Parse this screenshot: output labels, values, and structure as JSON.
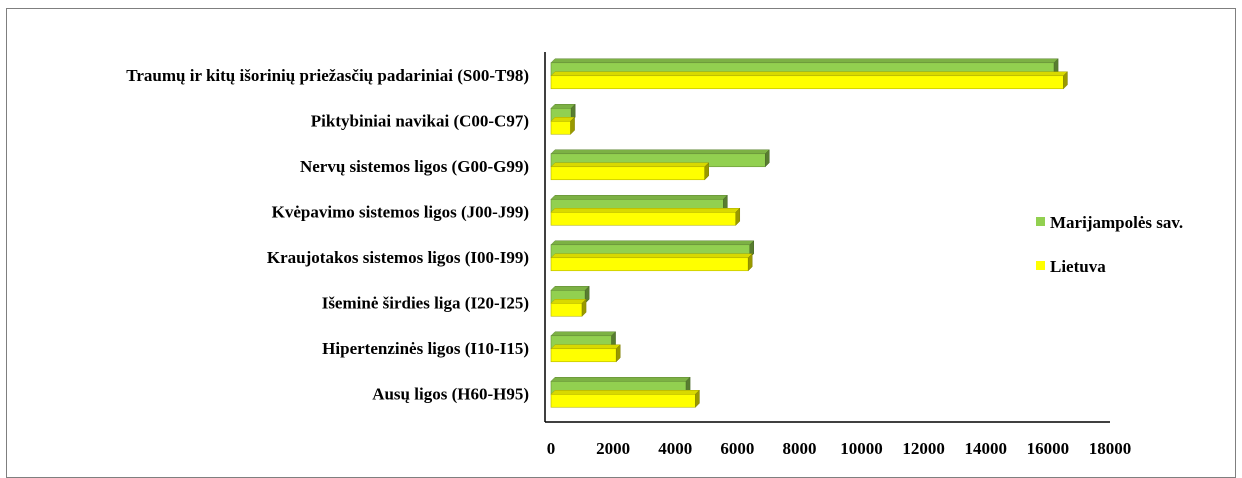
{
  "chart_data": {
    "type": "bar",
    "orientation": "horizontal",
    "style": "3d",
    "categories": [
      "Traumų ir kitų išorinių priežasčių padariniai (S00-T98)",
      "Piktybiniai navikai (C00-C97)",
      "Nervų sistemos ligos (G00-G99)",
      "Kvėpavimo sistemos ligos (J00-J99)",
      "Kraujotakos sistemos ligos (I00-I99)",
      "Išeminė širdies liga (I20-I25)",
      "Hipertenzinės ligos (I10-I15)",
      "Ausų ligos (H60-H95)"
    ],
    "series": [
      {
        "name": "Marijampolės sav.",
        "color": "#92d050",
        "values": [
          16200,
          650,
          6900,
          5550,
          6400,
          1100,
          1950,
          4350
        ]
      },
      {
        "name": "Lietuva",
        "color": "#ffff00",
        "values": [
          16500,
          630,
          4950,
          5950,
          6350,
          1000,
          2100,
          4650
        ]
      }
    ],
    "xlim": [
      0,
      18000
    ],
    "xticks": [
      "0",
      "2000",
      "4000",
      "6000",
      "8000",
      "10000",
      "12000",
      "14000",
      "16000",
      "18000"
    ],
    "title": "",
    "xlabel": "",
    "ylabel": "",
    "grid": false,
    "legend_position": "right"
  }
}
